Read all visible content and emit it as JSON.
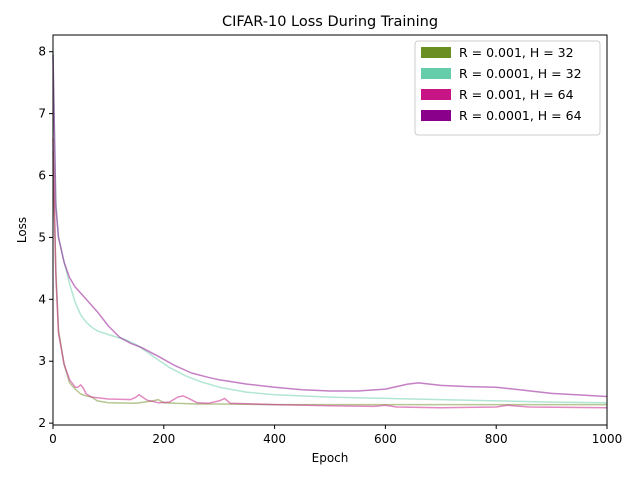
{
  "chart_data": {
    "type": "line",
    "title": "CIFAR-10 Loss During Training",
    "xlabel": "Epoch",
    "ylabel": "Loss",
    "xlim": [
      0,
      1000
    ],
    "ylim": [
      1.97,
      8.27
    ],
    "xticks": [
      0,
      200,
      400,
      600,
      800,
      1000
    ],
    "yticks": [
      2,
      3,
      4,
      5,
      6,
      7,
      8
    ],
    "grid": false,
    "legend_position": "top-right",
    "series": [
      {
        "name": "R = 0.001, H = 32",
        "color": "#6b8e23",
        "x": [
          0,
          5,
          10,
          20,
          30,
          40,
          50,
          60,
          70,
          80,
          100,
          150,
          180,
          190,
          200,
          220,
          260,
          300,
          400,
          500,
          600,
          700,
          800,
          900,
          1000
        ],
        "y": [
          6.4,
          4.5,
          3.5,
          2.95,
          2.65,
          2.55,
          2.47,
          2.44,
          2.42,
          2.36,
          2.33,
          2.32,
          2.36,
          2.38,
          2.33,
          2.32,
          2.31,
          2.31,
          2.3,
          2.3,
          2.3,
          2.3,
          2.3,
          2.3,
          2.3
        ]
      },
      {
        "name": "R = 0.0001, H = 32",
        "color": "#66cdaa",
        "x": [
          0,
          5,
          10,
          20,
          30,
          40,
          50,
          60,
          70,
          80,
          100,
          130,
          150,
          170,
          190,
          210,
          240,
          270,
          300,
          350,
          400,
          500,
          600,
          700,
          800,
          900,
          1000
        ],
        "y": [
          8.0,
          5.6,
          5.0,
          4.6,
          4.25,
          3.95,
          3.75,
          3.63,
          3.55,
          3.49,
          3.43,
          3.35,
          3.27,
          3.15,
          3.02,
          2.9,
          2.76,
          2.66,
          2.58,
          2.5,
          2.46,
          2.42,
          2.4,
          2.38,
          2.36,
          2.34,
          2.33
        ]
      },
      {
        "name": "R = 0.001, H = 64",
        "color": "#c71585",
        "x": [
          0,
          5,
          10,
          20,
          30,
          40,
          45,
          50,
          55,
          60,
          70,
          100,
          140,
          150,
          155,
          160,
          170,
          190,
          210,
          225,
          235,
          245,
          260,
          280,
          300,
          310,
          320,
          400,
          500,
          580,
          600,
          620,
          700,
          800,
          820,
          830,
          860,
          1000
        ],
        "y": [
          6.6,
          4.4,
          3.45,
          2.95,
          2.7,
          2.58,
          2.58,
          2.62,
          2.56,
          2.47,
          2.42,
          2.39,
          2.38,
          2.42,
          2.46,
          2.43,
          2.37,
          2.33,
          2.34,
          2.42,
          2.44,
          2.4,
          2.33,
          2.32,
          2.36,
          2.4,
          2.32,
          2.3,
          2.28,
          2.27,
          2.29,
          2.26,
          2.25,
          2.26,
          2.29,
          2.28,
          2.26,
          2.25
        ]
      },
      {
        "name": "R = 0.0001, H = 64",
        "color": "#8b008b",
        "x": [
          0,
          5,
          10,
          20,
          30,
          40,
          60,
          80,
          100,
          120,
          140,
          160,
          190,
          220,
          250,
          280,
          300,
          350,
          400,
          450,
          500,
          550,
          600,
          640,
          660,
          680,
          700,
          750,
          800,
          850,
          900,
          1000
        ],
        "y": [
          7.95,
          5.5,
          5.0,
          4.6,
          4.35,
          4.2,
          4.0,
          3.8,
          3.57,
          3.39,
          3.29,
          3.22,
          3.08,
          2.93,
          2.81,
          2.74,
          2.7,
          2.63,
          2.58,
          2.54,
          2.52,
          2.52,
          2.55,
          2.63,
          2.65,
          2.63,
          2.61,
          2.59,
          2.58,
          2.53,
          2.48,
          2.43
        ]
      }
    ]
  }
}
